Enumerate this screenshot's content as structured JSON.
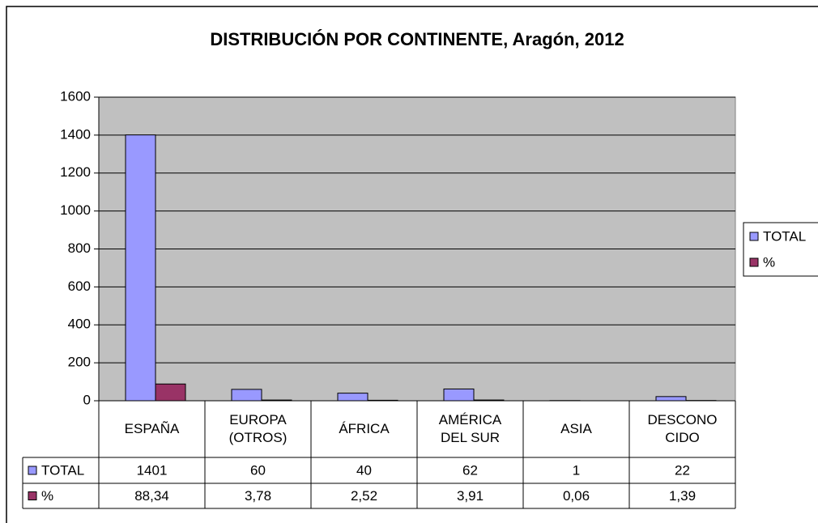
{
  "chart_data": {
    "type": "bar",
    "title": "DISTRIBUCIÓN POR CONTINENTE, Aragón, 2012",
    "categories": [
      "ESPAÑA",
      "EUROPA (OTROS)",
      "ÁFRICA",
      "AMÉRICA DEL SUR",
      "ASIA",
      "DESCONOCIDO"
    ],
    "series": [
      {
        "name": "TOTAL",
        "color": "#9999ff",
        "values": [
          1401,
          60,
          40,
          62,
          1,
          22
        ]
      },
      {
        "name": "%",
        "color": "#993366",
        "values": [
          88.34,
          3.78,
          2.52,
          3.91,
          0.06,
          1.39
        ],
        "value_labels": [
          "88,34",
          "3,78",
          "2,52",
          "3,91",
          "0,06",
          "1,39"
        ]
      }
    ],
    "ylim": [
      0,
      1600
    ],
    "yticks": [
      0,
      200,
      400,
      600,
      800,
      1000,
      1200,
      1400,
      1600
    ],
    "grid": true,
    "legend": "right"
  }
}
